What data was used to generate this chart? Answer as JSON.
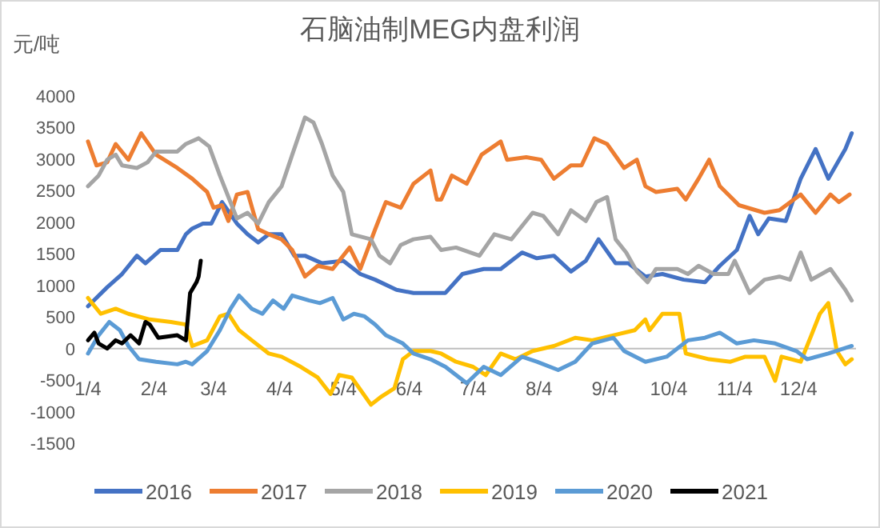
{
  "chart_data": {
    "type": "line",
    "title": "石脑油制MEG内盘利润",
    "ylabel": "元/吨",
    "legend": "bottom",
    "xlim": [
      "--01-04",
      "--12-31"
    ],
    "xticks": [
      {
        "value": "--01-04",
        "label": "1/4"
      },
      {
        "value": "--02-04",
        "label": "2/4"
      },
      {
        "value": "--03-04",
        "label": "3/4"
      },
      {
        "value": "--04-04",
        "label": "4/4"
      },
      {
        "value": "--05-04",
        "label": "5/4"
      },
      {
        "value": "--06-04",
        "label": "6/4"
      },
      {
        "value": "--07-04",
        "label": "7/4"
      },
      {
        "value": "--08-04",
        "label": "8/4"
      },
      {
        "value": "--09-04",
        "label": "9/4"
      },
      {
        "value": "--10-04",
        "label": "10/4"
      },
      {
        "value": "--11-04",
        "label": "11/4"
      },
      {
        "value": "--12-04",
        "label": "12/4"
      }
    ],
    "ylim": [
      -1500,
      4000
    ],
    "yticks": [
      -1500,
      -1000,
      -500,
      0,
      500,
      1000,
      1500,
      2000,
      2500,
      3000,
      3500,
      4000
    ],
    "series": [
      {
        "name": "2016",
        "color": "#4472c4",
        "x": [
          "--01-04",
          "--01-13",
          "--01-20",
          "--01-27",
          "--01-31",
          "--02-07",
          "--02-15",
          "--02-19",
          "--02-22",
          "--02-27",
          "--03-03",
          "--03-08",
          "--03-15",
          "--03-20",
          "--03-25",
          "--03-30",
          "--04-05",
          "--04-11",
          "--04-16",
          "--04-24",
          "--05-04",
          "--05-12",
          "--05-19",
          "--05-29",
          "--06-06",
          "--06-21",
          "--06-29",
          "--07-09",
          "--07-17",
          "--07-27",
          "--08-03",
          "--08-11",
          "--08-19",
          "--08-26",
          "--09-01",
          "--09-09",
          "--09-15",
          "--09-23",
          "--10-01",
          "--10-11",
          "--10-21",
          "--10-28",
          "--11-05",
          "--11-11",
          "--11-15",
          "--11-20",
          "--11-28",
          "--12-05",
          "--12-12",
          "--12-18",
          "--12-26",
          "--12-29"
        ],
        "values": [
          670,
          970,
          1180,
          1470,
          1350,
          1560,
          1560,
          1810,
          1900,
          1980,
          1980,
          2320,
          1980,
          1810,
          1680,
          1810,
          1810,
          1470,
          1470,
          1350,
          1390,
          1180,
          1090,
          930,
          880,
          880,
          1180,
          1260,
          1260,
          1520,
          1430,
          1470,
          1220,
          1390,
          1730,
          1350,
          1350,
          1140,
          1180,
          1090,
          1050,
          1310,
          1560,
          2100,
          1810,
          2060,
          2020,
          2690,
          3160,
          2690,
          3160,
          3410
        ]
      },
      {
        "name": "2017",
        "color": "#ed7d31",
        "x": [
          "--01-04",
          "--01-08",
          "--01-13",
          "--01-17",
          "--01-23",
          "--01-29",
          "--02-05",
          "--02-15",
          "--02-22",
          "--03-01",
          "--03-04",
          "--03-08",
          "--03-11",
          "--03-15",
          "--03-20",
          "--03-25",
          "--03-30",
          "--04-05",
          "--04-10",
          "--04-16",
          "--04-22",
          "--04-29",
          "--05-07",
          "--05-12",
          "--05-19",
          "--05-24",
          "--05-31",
          "--06-06",
          "--06-14",
          "--06-17",
          "--06-19",
          "--06-24",
          "--07-01",
          "--07-08",
          "--07-17",
          "--07-20",
          "--07-29",
          "--08-05",
          "--08-11",
          "--08-19",
          "--08-24",
          "--08-30",
          "--09-05",
          "--09-13",
          "--09-19",
          "--09-23",
          "--09-28",
          "--10-08",
          "--10-12",
          "--10-18",
          "--10-23",
          "--10-28",
          "--11-06",
          "--11-18",
          "--11-25",
          "--12-05",
          "--12-12",
          "--12-19",
          "--12-23",
          "--12-28"
        ],
        "values": [
          3280,
          2900,
          2950,
          3240,
          2990,
          3410,
          3070,
          2860,
          2690,
          2480,
          2230,
          2270,
          2020,
          2440,
          2480,
          1890,
          1810,
          1730,
          1560,
          1140,
          1310,
          1260,
          1600,
          1260,
          1890,
          2320,
          2230,
          2610,
          2820,
          2360,
          2360,
          2740,
          2610,
          3070,
          3280,
          2990,
          3030,
          2990,
          2690,
          2900,
          2900,
          3330,
          3240,
          2860,
          2990,
          2570,
          2480,
          2530,
          2360,
          2690,
          2990,
          2570,
          2270,
          2150,
          2190,
          2440,
          2150,
          2440,
          2320,
          2440
        ]
      },
      {
        "name": "2018",
        "color": "#a5a5a5",
        "x": [
          "--01-04",
          "--01-09",
          "--01-13",
          "--01-17",
          "--01-20",
          "--01-27",
          "--02-01",
          "--02-05",
          "--02-15",
          "--02-19",
          "--02-25",
          "--03-02",
          "--03-07",
          "--03-11",
          "--03-15",
          "--03-20",
          "--03-25",
          "--03-30",
          "--04-05",
          "--04-10",
          "--04-16",
          "--04-20",
          "--04-24",
          "--04-29",
          "--05-04",
          "--05-08",
          "--05-17",
          "--05-21",
          "--05-26",
          "--05-31",
          "--06-06",
          "--06-14",
          "--06-19",
          "--06-26",
          "--07-07",
          "--07-14",
          "--07-22",
          "--08-01",
          "--08-06",
          "--08-13",
          "--08-19",
          "--08-26",
          "--08-31",
          "--09-05",
          "--09-09",
          "--09-14",
          "--09-19",
          "--09-24",
          "--09-28",
          "--10-08",
          "--10-13",
          "--10-18",
          "--10-25",
          "--11-01",
          "--11-04",
          "--11-11",
          "--11-18",
          "--11-25",
          "--11-30",
          "--12-05",
          "--12-10",
          "--12-19",
          "--12-26",
          "--12-29"
        ],
        "values": [
          2570,
          2740,
          2990,
          3070,
          2900,
          2860,
          2950,
          3120,
          3120,
          3240,
          3330,
          3200,
          2740,
          2400,
          2060,
          2150,
          1980,
          2320,
          2570,
          3070,
          3660,
          3580,
          3240,
          2740,
          2480,
          1810,
          1730,
          1470,
          1350,
          1640,
          1730,
          1770,
          1560,
          1600,
          1470,
          1810,
          1730,
          2150,
          2100,
          1810,
          2190,
          2020,
          2320,
          2400,
          1730,
          1520,
          1220,
          1050,
          1260,
          1260,
          1180,
          1310,
          1180,
          1180,
          1390,
          880,
          1090,
          1140,
          1090,
          1520,
          1090,
          1260,
          930,
          760
        ]
      },
      {
        "name": "2019",
        "color": "#ffc000",
        "x": [
          "--01-04",
          "--01-10",
          "--01-17",
          "--01-23",
          "--02-02",
          "--02-12",
          "--02-19",
          "--02-22",
          "--03-01",
          "--03-07",
          "--03-11",
          "--03-16",
          "--03-22",
          "--03-30",
          "--04-05",
          "--04-14",
          "--04-22",
          "--04-28",
          "--05-02",
          "--05-08",
          "--05-17",
          "--05-22",
          "--05-28",
          "--06-01",
          "--06-06",
          "--06-14",
          "--06-19",
          "--06-26",
          "--07-04",
          "--07-10",
          "--07-17",
          "--07-24",
          "--08-01",
          "--08-11",
          "--08-21",
          "--08-29",
          "--09-08",
          "--09-18",
          "--09-23",
          "--09-25",
          "--10-01",
          "--10-09",
          "--10-12",
          "--10-23",
          "--11-02",
          "--11-09",
          "--11-18",
          "--11-23",
          "--11-26",
          "--12-05",
          "--12-10",
          "--12-14",
          "--12-18",
          "--12-22",
          "--12-26",
          "--12-29"
        ],
        "values": [
          800,
          550,
          630,
          550,
          460,
          420,
          380,
          40,
          130,
          510,
          550,
          290,
          130,
          -80,
          -130,
          -290,
          -460,
          -720,
          -420,
          -460,
          -890,
          -760,
          -630,
          -170,
          -40,
          -40,
          -80,
          -210,
          -290,
          -420,
          -80,
          -170,
          -40,
          40,
          170,
          130,
          210,
          290,
          460,
          290,
          550,
          550,
          -80,
          -170,
          -210,
          -130,
          -130,
          -510,
          -130,
          -210,
          210,
          550,
          720,
          -40,
          -250,
          -170
        ]
      },
      {
        "name": "2020",
        "color": "#5b9bd5",
        "x": [
          "--01-04",
          "--01-09",
          "--01-14",
          "--01-19",
          "--01-23",
          "--01-28",
          "--02-05",
          "--02-15",
          "--02-19",
          "--02-22",
          "--03-01",
          "--03-07",
          "--03-12",
          "--03-16",
          "--03-22",
          "--03-27",
          "--04-01",
          "--04-06",
          "--04-10",
          "--04-18",
          "--04-23",
          "--04-29",
          "--05-04",
          "--05-09",
          "--05-14",
          "--05-19",
          "--05-24",
          "--06-01",
          "--06-06",
          "--06-14",
          "--06-21",
          "--07-01",
          "--07-09",
          "--07-17",
          "--07-27",
          "--08-03",
          "--08-13",
          "--08-21",
          "--08-29",
          "--09-08",
          "--09-13",
          "--09-23",
          "--10-03",
          "--10-13",
          "--10-21",
          "--10-28",
          "--11-05",
          "--11-13",
          "--11-23",
          "--12-03",
          "--12-08",
          "--12-18",
          "--12-29"
        ],
        "values": [
          -80,
          210,
          420,
          290,
          40,
          -170,
          -210,
          -250,
          -210,
          -250,
          -40,
          290,
          630,
          840,
          630,
          550,
          760,
          630,
          840,
          760,
          720,
          800,
          460,
          550,
          510,
          380,
          210,
          80,
          -80,
          -170,
          -290,
          -550,
          -290,
          -420,
          -130,
          -210,
          -340,
          -210,
          80,
          170,
          -40,
          -210,
          -130,
          130,
          170,
          250,
          80,
          130,
          80,
          -40,
          -170,
          -80,
          40
        ]
      },
      {
        "name": "2021",
        "color": "#000000",
        "x": [
          "--01-04",
          "--01-07",
          "--01-09",
          "--01-13",
          "--01-17",
          "--01-20",
          "--01-24",
          "--01-28",
          "--01-31",
          "--02-02",
          "--02-06",
          "--02-15",
          "--02-19",
          "--02-21",
          "--02-24",
          "--02-25",
          "--02-26"
        ],
        "values": [
          130,
          250,
          80,
          0,
          130,
          80,
          210,
          80,
          420,
          380,
          170,
          210,
          130,
          880,
          1050,
          1140,
          1390
        ]
      }
    ]
  }
}
